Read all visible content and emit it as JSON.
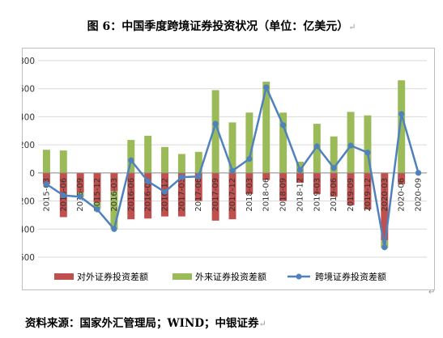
{
  "title": "图 6：中国季度跨境证券投资状况（单位：亿美元）",
  "source": "资料来源：国家外汇管理局；WIND；中银证券",
  "colors": {
    "outflow": "#c0504d",
    "inflow": "#9bbb59",
    "net": "#4f81bd",
    "grid": "#d9d9d9",
    "frame": "#bfbfbf"
  },
  "chart_data": {
    "type": "bar",
    "categories": [
      "2015-03",
      "2015-06",
      "2015-09",
      "2015-12",
      "2016-03",
      "2016-06",
      "2016-09",
      "2016-12",
      "2017-03",
      "2017-06",
      "2017-09",
      "2017-12",
      "2018-03",
      "2018-06",
      "2018-09",
      "2018-12",
      "2019-03",
      "2019-06",
      "2019-09",
      "2019-12",
      "2020-03",
      "2020-06",
      "2020-09"
    ],
    "x_tick_labels": [
      "2015-03",
      "2015-06",
      "2015-09",
      "2015-12",
      "2016-03",
      "2016-06",
      "2016-09",
      "2016-12",
      "2017-03",
      "2017-06",
      "2017-09",
      "2017-12",
      "2018-03",
      "2018-06",
      "2018-09",
      "2018-12",
      "2019-03",
      "2019-06",
      "2019-09",
      "2019-12",
      "2020-03",
      "2020-06",
      "2020-09"
    ],
    "series": [
      {
        "name": "对外证券投资差额",
        "kind": "bar",
        "values": [
          -80,
          -315,
          -140,
          -210,
          -130,
          -330,
          -325,
          -310,
          -310,
          -200,
          -340,
          -330,
          -150,
          -50,
          -200,
          -70,
          -150,
          -170,
          -230,
          -260,
          -480,
          -80,
          0
        ]
      },
      {
        "name": "外来证券投资差额",
        "kind": "bar",
        "values": [
          165,
          160,
          -30,
          -45,
          -270,
          235,
          265,
          185,
          135,
          150,
          590,
          360,
          430,
          650,
          430,
          80,
          350,
          260,
          435,
          410,
          -55,
          660,
          0
        ]
      },
      {
        "name": "跨境证券投资差额",
        "kind": "line",
        "values": [
          -80,
          -160,
          -170,
          -260,
          -400,
          90,
          -60,
          -135,
          -30,
          -25,
          350,
          15,
          100,
          610,
          340,
          20,
          190,
          35,
          195,
          145,
          -530,
          420,
          0
        ]
      }
    ],
    "ylim": [
      -600,
      800
    ],
    "yticks": [
      -600,
      -400,
      -200,
      0,
      200,
      400,
      600,
      800
    ],
    "grid": true,
    "legend_position": "bottom"
  }
}
